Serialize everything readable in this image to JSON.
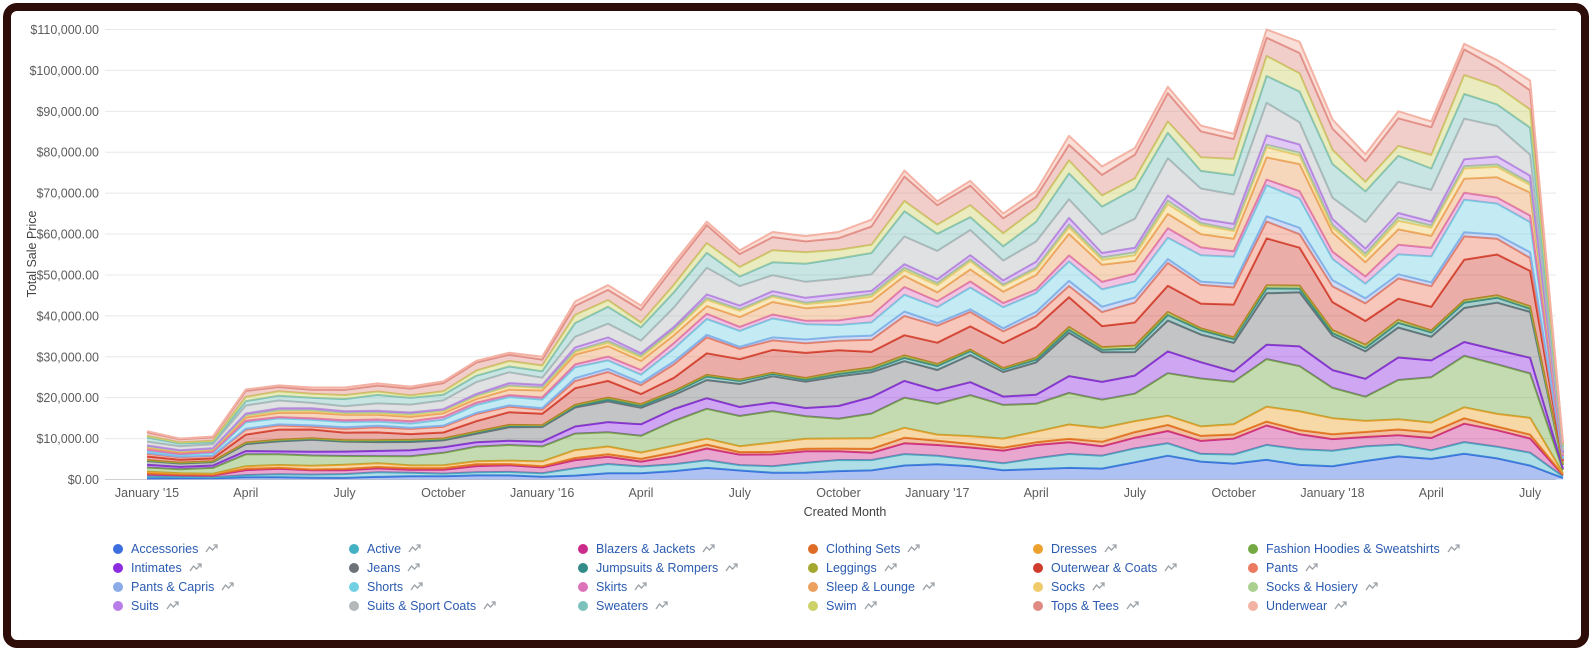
{
  "frame": {
    "border_color": "#2e0c08",
    "background": "#ffffff"
  },
  "chart_data": {
    "type": "area",
    "stacked": true,
    "title": "",
    "xlabel": "Created Month",
    "ylabel": "Total Sale Price",
    "ylim": [
      0,
      110000
    ],
    "grid": true,
    "legend_position": "bottom",
    "y_tick_labels": [
      "$0.00",
      "$10,000.00",
      "$20,000.00",
      "$30,000.00",
      "$40,000.00",
      "$50,000.00",
      "$60,000.00",
      "$70,000.00",
      "$80,000.00",
      "$90,000.00",
      "$100,000.00",
      "$110,000.00"
    ],
    "x_tick_labels": [
      "January '15",
      "April",
      "July",
      "October",
      "January '16",
      "April",
      "July",
      "October",
      "January '17",
      "April",
      "July",
      "October",
      "January '18",
      "April",
      "July"
    ],
    "x_tick_month_indices": [
      0,
      3,
      6,
      9,
      12,
      15,
      18,
      21,
      24,
      27,
      30,
      33,
      36,
      39,
      42
    ],
    "months": [
      "2015-01",
      "2015-02",
      "2015-03",
      "2015-04",
      "2015-05",
      "2015-06",
      "2015-07",
      "2015-08",
      "2015-09",
      "2015-10",
      "2015-11",
      "2015-12",
      "2016-01",
      "2016-02",
      "2016-03",
      "2016-04",
      "2016-05",
      "2016-06",
      "2016-07",
      "2016-08",
      "2016-09",
      "2016-10",
      "2016-11",
      "2016-12",
      "2017-01",
      "2017-02",
      "2017-03",
      "2017-04",
      "2017-05",
      "2017-06",
      "2017-07",
      "2017-08",
      "2017-09",
      "2017-10",
      "2017-11",
      "2017-12",
      "2018-01",
      "2018-02",
      "2018-03",
      "2018-04",
      "2018-05",
      "2018-06",
      "2018-07",
      "2018-08"
    ],
    "stack_totals_usd": [
      11800,
      10000,
      10500,
      22000,
      23000,
      22500,
      22500,
      23500,
      22700,
      24000,
      29000,
      31000,
      30000,
      43500,
      47500,
      42500,
      53000,
      63000,
      56000,
      60500,
      59500,
      60500,
      63500,
      75500,
      68000,
      73000,
      65000,
      70500,
      84000,
      76500,
      81000,
      96000,
      86500,
      84500,
      110000,
      107000,
      88000,
      79500,
      90000,
      87500,
      106500,
      102500,
      97500,
      9000
    ],
    "series_note": "24 alphabetical categories stacked bottom-to-top; share = estimated average fraction of monthly stack total",
    "series": [
      {
        "name": "Accessories",
        "color": "#3c6ee0",
        "share": 0.038,
        "trend": 0.9
      },
      {
        "name": "Active",
        "color": "#43b0c4",
        "share": 0.034,
        "trend": 0.0
      },
      {
        "name": "Blazers & Jackets",
        "color": "#cb2b8a",
        "share": 0.04,
        "trend": -0.3
      },
      {
        "name": "Clothing Sets",
        "color": "#df6c26",
        "share": 0.013,
        "trend": 0.0
      },
      {
        "name": "Dresses",
        "color": "#eca12e",
        "share": 0.034,
        "trend": 0.0
      },
      {
        "name": "Fashion Hoodies & Sweatshirts",
        "color": "#73a843",
        "share": 0.107,
        "trend": 0.0
      },
      {
        "name": "Intimates",
        "color": "#8c2be0",
        "share": 0.046,
        "trend": 0.0
      },
      {
        "name": "Jeans",
        "color": "#6d7278",
        "share": 0.094,
        "trend": 0.0
      },
      {
        "name": "Jumpsuits & Rompers",
        "color": "#338c88",
        "share": 0.011,
        "trend": 0.0
      },
      {
        "name": "Leggings",
        "color": "#a4a82e",
        "share": 0.007,
        "trend": 0.0
      },
      {
        "name": "Outerwear & Coats",
        "color": "#cf3c2e",
        "share": 0.082,
        "trend": 0.0
      },
      {
        "name": "Pants",
        "color": "#ec7a60",
        "share": 0.048,
        "trend": 0.0
      },
      {
        "name": "Pants & Capris",
        "color": "#8aabe8",
        "share": 0.013,
        "trend": 0.0
      },
      {
        "name": "Shorts",
        "color": "#72d0e4",
        "share": 0.061,
        "trend": 0.2
      },
      {
        "name": "Skirts",
        "color": "#dd74ba",
        "share": 0.02,
        "trend": 0.0
      },
      {
        "name": "Sleep & Lounge",
        "color": "#eba05e",
        "share": 0.046,
        "trend": 0.0
      },
      {
        "name": "Socks",
        "color": "#f0cb6c",
        "share": 0.021,
        "trend": 0.0
      },
      {
        "name": "Socks & Hosiery",
        "color": "#aacf8e",
        "share": 0.007,
        "trend": 0.0
      },
      {
        "name": "Suits",
        "color": "#b77ee8",
        "share": 0.016,
        "trend": 0.0
      },
      {
        "name": "Suits & Sport Coats",
        "color": "#b4b8ba",
        "share": 0.077,
        "trend": 0.0
      },
      {
        "name": "Sweaters",
        "color": "#7cc2bc",
        "share": 0.067,
        "trend": 0.2
      },
      {
        "name": "Swim",
        "color": "#ccd168",
        "share": 0.039,
        "trend": 0.0
      },
      {
        "name": "Tops & Tees",
        "color": "#df8b84",
        "share": 0.061,
        "trend": 0.0
      },
      {
        "name": "Underwear",
        "color": "#f3b2a4",
        "share": 0.02,
        "trend": 0.0
      }
    ],
    "legend": {
      "rows": 4,
      "columns": 6,
      "item_icon": "trend-sparkline-icon",
      "label_color": "#2b5bb0"
    }
  },
  "style": {
    "grid_color": "#e8e8e8",
    "zero_line_color": "#d0d0d0",
    "tick_color": "#5c5c5c",
    "axis_title_color": "#424242",
    "fill_opacity": 0.42,
    "icon_color": "#9aa0a6"
  }
}
